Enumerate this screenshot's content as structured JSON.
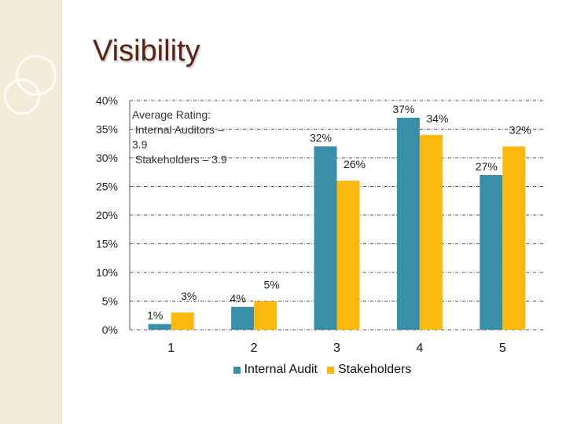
{
  "title": "Visibility",
  "annotation": "Average Rating:\n Internal Auditors –\n3.9\n Stakeholders – 3.9",
  "colors": {
    "internal_audit": "#3a8fa8",
    "stakeholders": "#fbb80f",
    "title": "#5a2412"
  },
  "chart_data": {
    "type": "bar",
    "title": "",
    "xlabel": "",
    "ylabel": "",
    "categories": [
      "1",
      "2",
      "3",
      "4",
      "5"
    ],
    "y_ticks": [
      "0%",
      "5%",
      "10%",
      "15%",
      "20%",
      "25%",
      "30%",
      "35%",
      "40%"
    ],
    "ylim": [
      0,
      40
    ],
    "grid": true,
    "legend_placement": "bottom",
    "series": [
      {
        "name": "Internal Audit",
        "values": [
          1,
          4,
          32,
          37,
          27
        ],
        "labels": [
          "1%",
          "4%",
          "32%",
          "37%",
          "27%"
        ]
      },
      {
        "name": "Stakeholders",
        "values": [
          3,
          5,
          26,
          34,
          32
        ],
        "labels": [
          "3%",
          "5%",
          "26%",
          "34%",
          "32%"
        ]
      }
    ]
  }
}
